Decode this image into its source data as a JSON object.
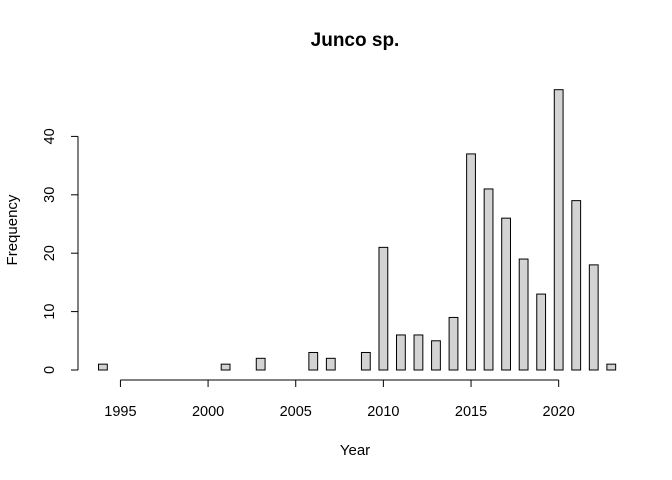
{
  "chart_data": {
    "type": "bar",
    "title": "Junco sp.",
    "xlabel": "Year",
    "ylabel": "Frequency",
    "x": [
      1994,
      1995,
      1996,
      1997,
      1998,
      1999,
      2000,
      2001,
      2002,
      2003,
      2004,
      2005,
      2006,
      2007,
      2008,
      2009,
      2010,
      2011,
      2012,
      2013,
      2014,
      2015,
      2016,
      2017,
      2018,
      2019,
      2020,
      2021,
      2022,
      2023
    ],
    "values": [
      1,
      0,
      0,
      0,
      0,
      0,
      0,
      1,
      0,
      2,
      0,
      0,
      3,
      2,
      0,
      3,
      21,
      6,
      6,
      5,
      9,
      37,
      31,
      26,
      19,
      13,
      48,
      29,
      18,
      1
    ],
    "xticks": [
      "1995",
      "2000",
      "2005",
      "2010",
      "2015",
      "2020"
    ],
    "yticks": [
      "0",
      "10",
      "20",
      "30",
      "40"
    ],
    "xlim": [
      1994,
      2023
    ],
    "ylim": [
      0,
      48
    ],
    "grid": false,
    "legend": "none",
    "bar_color": "#d3d3d3",
    "border_color": "#000000"
  }
}
